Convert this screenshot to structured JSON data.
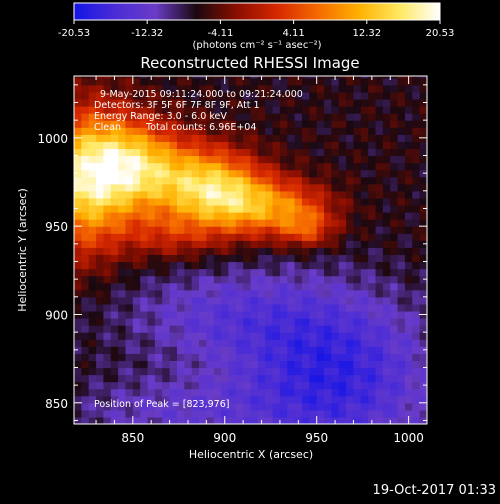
{
  "chart_data": {
    "type": "heatmap",
    "title": "Reconstructed RHESSI Image",
    "xlabel": "Heliocentric X (arcsec)",
    "ylabel": "Heliocentric Y (arcsec)",
    "xlim": [
      818,
      1010
    ],
    "ylim": [
      838,
      1035
    ],
    "xticks": [
      850,
      900,
      950,
      1000
    ],
    "yticks": [
      850,
      900,
      950,
      1000
    ],
    "colorbar": {
      "min": -20.53,
      "max": 20.53,
      "ticks": [
        "-20.53",
        "-12.32",
        "-4.11",
        "4.11",
        "12.32",
        "20.53"
      ],
      "units_label": "(photons cm⁻² s⁻¹ asec⁻²)",
      "colormap": [
        "#1414e6",
        "#4a2cd6",
        "#6a3cc8",
        "#1a0810",
        "#8a0e00",
        "#d62800",
        "#f56a00",
        "#ffb000",
        "#ffe860",
        "#ffffff"
      ]
    },
    "annotations": {
      "time_range": "9-May-2015 09:11:24.000 to 09:21:24.000",
      "detectors": "Detectors: 3F 5F 6F 7F 8F 9F, Att 1",
      "energy_range": "Energy Range: 3.0 - 6.0 keV",
      "clean": "Clean",
      "total_counts": "Total counts: 6.96E+04",
      "peak": "Position of Peak = [823,976]"
    },
    "peak_position": [
      823,
      976
    ],
    "sources": [
      {
        "x": 823,
        "y": 976,
        "peak": 20.5,
        "sx": 18,
        "sy": 28
      },
      {
        "x": 850,
        "y": 985,
        "peak": 17.0,
        "sx": 18,
        "sy": 18
      },
      {
        "x": 885,
        "y": 975,
        "peak": 15.0,
        "sx": 20,
        "sy": 16
      },
      {
        "x": 905,
        "y": 965,
        "peak": 13.5,
        "sx": 18,
        "sy": 14
      },
      {
        "x": 935,
        "y": 960,
        "peak": 11.5,
        "sx": 18,
        "sy": 11
      },
      {
        "x": 945,
        "y": 948,
        "peak": 7.5,
        "sx": 10,
        "sy": 7
      },
      {
        "x": 870,
        "y": 945,
        "peak": 6.0,
        "sx": 18,
        "sy": 10
      },
      {
        "x": 900,
        "y": 900,
        "peak": -6.0,
        "sx": 45,
        "sy": 20
      },
      {
        "x": 960,
        "y": 865,
        "peak": -11.0,
        "sx": 38,
        "sy": 32
      },
      {
        "x": 870,
        "y": 845,
        "peak": -5.0,
        "sx": 45,
        "sy": 15
      }
    ],
    "background_level": -6.5
  },
  "footer": {
    "timestamp": "19-Oct-2017 01:33"
  }
}
